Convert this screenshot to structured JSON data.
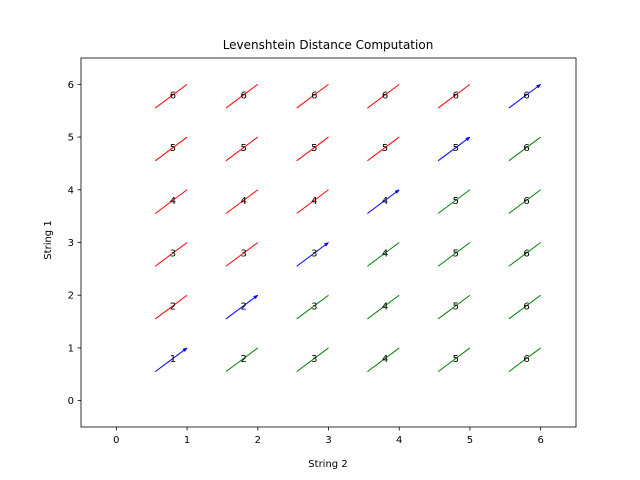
{
  "chart_data": {
    "type": "line",
    "title": "Levenshtein Distance Computation",
    "xlabel": "String 2",
    "ylabel": "String 1",
    "xlim": [
      -0.5,
      6.5
    ],
    "ylim": [
      -0.5,
      6.5
    ],
    "xticks": [
      0,
      1,
      2,
      3,
      4,
      5,
      6
    ],
    "yticks": [
      0,
      1,
      2,
      3,
      4,
      5,
      6
    ],
    "grid": false,
    "legend": "none",
    "colors": {
      "match": "#0000ff",
      "insertion": "#008000",
      "deletion": "#ff0000",
      "frame": "#000000"
    },
    "cells": [
      {
        "x": 1,
        "y": 1,
        "value": 1,
        "color": "blue",
        "arrow": true
      },
      {
        "x": 2,
        "y": 1,
        "value": 2,
        "color": "green",
        "arrow": false
      },
      {
        "x": 3,
        "y": 1,
        "value": 3,
        "color": "green",
        "arrow": false
      },
      {
        "x": 4,
        "y": 1,
        "value": 4,
        "color": "green",
        "arrow": false
      },
      {
        "x": 5,
        "y": 1,
        "value": 5,
        "color": "green",
        "arrow": false
      },
      {
        "x": 6,
        "y": 1,
        "value": 6,
        "color": "green",
        "arrow": false
      },
      {
        "x": 1,
        "y": 2,
        "value": 2,
        "color": "red",
        "arrow": false
      },
      {
        "x": 2,
        "y": 2,
        "value": 2,
        "color": "blue",
        "arrow": true
      },
      {
        "x": 3,
        "y": 2,
        "value": 3,
        "color": "green",
        "arrow": false
      },
      {
        "x": 4,
        "y": 2,
        "value": 4,
        "color": "green",
        "arrow": false
      },
      {
        "x": 5,
        "y": 2,
        "value": 5,
        "color": "green",
        "arrow": false
      },
      {
        "x": 6,
        "y": 2,
        "value": 6,
        "color": "green",
        "arrow": false
      },
      {
        "x": 1,
        "y": 3,
        "value": 3,
        "color": "red",
        "arrow": false
      },
      {
        "x": 2,
        "y": 3,
        "value": 3,
        "color": "red",
        "arrow": false
      },
      {
        "x": 3,
        "y": 3,
        "value": 3,
        "color": "blue",
        "arrow": true
      },
      {
        "x": 4,
        "y": 3,
        "value": 4,
        "color": "green",
        "arrow": false
      },
      {
        "x": 5,
        "y": 3,
        "value": 5,
        "color": "green",
        "arrow": false
      },
      {
        "x": 6,
        "y": 3,
        "value": 6,
        "color": "green",
        "arrow": false
      },
      {
        "x": 1,
        "y": 4,
        "value": 4,
        "color": "red",
        "arrow": false
      },
      {
        "x": 2,
        "y": 4,
        "value": 4,
        "color": "red",
        "arrow": false
      },
      {
        "x": 3,
        "y": 4,
        "value": 4,
        "color": "red",
        "arrow": false
      },
      {
        "x": 4,
        "y": 4,
        "value": 4,
        "color": "blue",
        "arrow": true
      },
      {
        "x": 5,
        "y": 4,
        "value": 5,
        "color": "green",
        "arrow": false
      },
      {
        "x": 6,
        "y": 4,
        "value": 6,
        "color": "green",
        "arrow": false
      },
      {
        "x": 1,
        "y": 5,
        "value": 5,
        "color": "red",
        "arrow": false
      },
      {
        "x": 2,
        "y": 5,
        "value": 5,
        "color": "red",
        "arrow": false
      },
      {
        "x": 3,
        "y": 5,
        "value": 5,
        "color": "red",
        "arrow": false
      },
      {
        "x": 4,
        "y": 5,
        "value": 5,
        "color": "red",
        "arrow": false
      },
      {
        "x": 5,
        "y": 5,
        "value": 5,
        "color": "blue",
        "arrow": true
      },
      {
        "x": 6,
        "y": 5,
        "value": 6,
        "color": "green",
        "arrow": false
      },
      {
        "x": 1,
        "y": 6,
        "value": 6,
        "color": "red",
        "arrow": false
      },
      {
        "x": 2,
        "y": 6,
        "value": 6,
        "color": "red",
        "arrow": false
      },
      {
        "x": 3,
        "y": 6,
        "value": 6,
        "color": "red",
        "arrow": false
      },
      {
        "x": 4,
        "y": 6,
        "value": 6,
        "color": "red",
        "arrow": false
      },
      {
        "x": 5,
        "y": 6,
        "value": 6,
        "color": "red",
        "arrow": false
      },
      {
        "x": 6,
        "y": 6,
        "value": 6,
        "color": "blue",
        "arrow": true
      }
    ]
  }
}
